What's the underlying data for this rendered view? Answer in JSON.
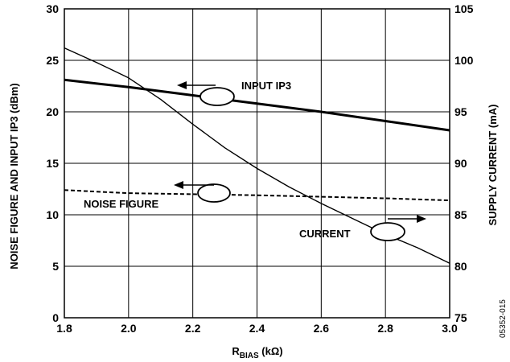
{
  "chart_data": {
    "type": "line",
    "xlabel_main": "R",
    "xlabel_sub": "BIAS",
    "xlabel_unit": " (kΩ)",
    "ylabel_left": "NOISE FIGURE AND INPUT IP3 (dBm)",
    "ylabel_right": "SUPPLY CURRENT (mA)",
    "xlim": [
      1.8,
      3.0
    ],
    "ylim_left": [
      0,
      30
    ],
    "ylim_right": [
      75,
      105
    ],
    "x_ticks": [
      "1.8",
      "2.0",
      "2.2",
      "2.4",
      "2.6",
      "2.8",
      "3.0"
    ],
    "y_left_ticks": [
      "0",
      "5",
      "10",
      "15",
      "20",
      "25",
      "30"
    ],
    "y_right_ticks": [
      "75",
      "80",
      "85",
      "90",
      "95",
      "100",
      "105"
    ],
    "grid": true,
    "series": [
      {
        "name": "INPUT IP3",
        "axis": "left",
        "style": "solid-thick",
        "x": [
          1.8,
          2.0,
          2.2,
          2.4,
          2.6,
          2.8,
          3.0
        ],
        "y": [
          23.1,
          22.4,
          21.6,
          20.8,
          20.0,
          19.1,
          18.2
        ]
      },
      {
        "name": "NOISE FIGURE",
        "axis": "left",
        "style": "dashed",
        "x": [
          1.8,
          2.0,
          2.2,
          2.4,
          2.6,
          2.8,
          3.0
        ],
        "y": [
          12.4,
          12.1,
          12.0,
          11.9,
          11.75,
          11.6,
          11.4
        ]
      },
      {
        "name": "CURRENT",
        "axis": "right",
        "style": "solid-thin",
        "x": [
          1.8,
          1.9,
          2.0,
          2.1,
          2.2,
          2.3,
          2.4,
          2.5,
          2.6,
          2.7,
          2.8,
          2.9,
          3.0
        ],
        "y": [
          101.2,
          99.8,
          98.3,
          96.2,
          93.8,
          91.5,
          89.5,
          87.7,
          86.1,
          84.6,
          83.1,
          81.8,
          80.3
        ]
      }
    ],
    "annotations": {
      "ip3_label": "INPUT IP3",
      "nf_label": "NOISE FIGURE",
      "current_label": "CURRENT"
    },
    "figure_id": "05352-015"
  }
}
